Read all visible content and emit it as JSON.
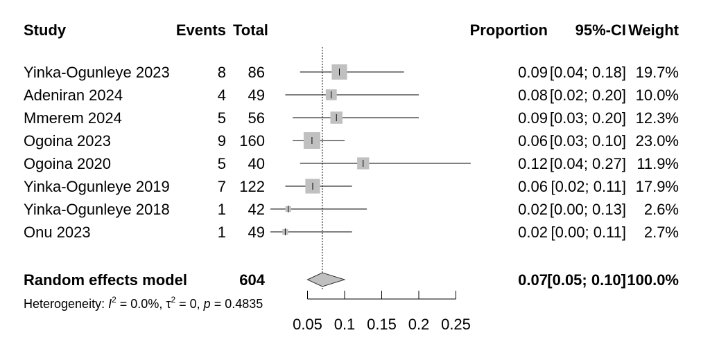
{
  "headers": {
    "study": "Study",
    "events": "Events",
    "total": "Total",
    "proportion": "Proportion",
    "ci": "95%-CI",
    "weight": "Weight"
  },
  "chart_data": {
    "type": "forest",
    "xlim": [
      0,
      0.3
    ],
    "x_ticks": [
      "0.05",
      "0.1",
      "0.15",
      "0.2",
      "0.25"
    ],
    "reference_line": 0.07,
    "studies": [
      {
        "study": "Yinka-Ogunleye 2023",
        "events": "8",
        "total": "86",
        "proportion": 0.093,
        "ci_low": 0.04,
        "ci_high": 0.18,
        "proportion_text": "0.09",
        "ci_text": "[0.04; 0.18]",
        "weight_text": "19.7%",
        "weight": 19.7
      },
      {
        "study": "Adeniran 2024",
        "events": "4",
        "total": "49",
        "proportion": 0.082,
        "ci_low": 0.02,
        "ci_high": 0.2,
        "proportion_text": "0.08",
        "ci_text": "[0.02; 0.20]",
        "weight_text": "10.0%",
        "weight": 10.0
      },
      {
        "study": "Mmerem 2024",
        "events": "5",
        "total": "56",
        "proportion": 0.089,
        "ci_low": 0.03,
        "ci_high": 0.2,
        "proportion_text": "0.09",
        "ci_text": "[0.03; 0.20]",
        "weight_text": "12.3%",
        "weight": 12.3
      },
      {
        "study": "Ogoina 2023",
        "events": "9",
        "total": "160",
        "proportion": 0.056,
        "ci_low": 0.03,
        "ci_high": 0.1,
        "proportion_text": "0.06",
        "ci_text": "[0.03; 0.10]",
        "weight_text": "23.0%",
        "weight": 23.0
      },
      {
        "study": "Ogoina 2020",
        "events": "5",
        "total": "40",
        "proportion": 0.125,
        "ci_low": 0.04,
        "ci_high": 0.27,
        "proportion_text": "0.12",
        "ci_text": "[0.04; 0.27]",
        "weight_text": "11.9%",
        "weight": 11.9
      },
      {
        "study": "Yinka-Ogunleye 2019",
        "events": "7",
        "total": "122",
        "proportion": 0.057,
        "ci_low": 0.02,
        "ci_high": 0.11,
        "proportion_text": "0.06",
        "ci_text": "[0.02; 0.11]",
        "weight_text": "17.9%",
        "weight": 17.9
      },
      {
        "study": "Yinka-Ogunleye 2018",
        "events": "1",
        "total": "42",
        "proportion": 0.024,
        "ci_low": 0.0,
        "ci_high": 0.13,
        "proportion_text": "0.02",
        "ci_text": "[0.00; 0.13]",
        "weight_text": "2.6%",
        "weight": 2.6
      },
      {
        "study": "Onu 2023",
        "events": "1",
        "total": "49",
        "proportion": 0.02,
        "ci_low": 0.0,
        "ci_high": 0.11,
        "proportion_text": "0.02",
        "ci_text": "[0.00; 0.11]",
        "weight_text": "2.7%",
        "weight": 2.7
      }
    ],
    "pooled": {
      "label": "Random effects model",
      "total": "604",
      "estimate": 0.07,
      "ci_low": 0.05,
      "ci_high": 0.1,
      "proportion_text": "0.07",
      "ci_text": "[0.05; 0.10]",
      "weight_text": "100.0%"
    },
    "heterogeneity": {
      "prefix": "Heterogeneity: ",
      "i2_symbol": "I",
      "i2_value": " = 0.0%, ",
      "tau2_symbol": "τ",
      "tau2_value": " = 0, ",
      "p_symbol": "p",
      "p_value": " = 0.4835",
      "sup": "2"
    }
  }
}
